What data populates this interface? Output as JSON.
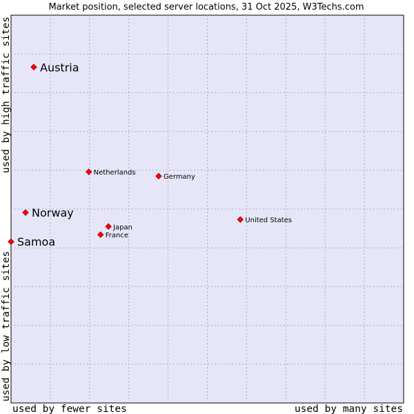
{
  "chart_data": {
    "type": "scatter",
    "title": "Market position, selected server locations, 31 Oct 2025, W3Techs.com",
    "xlabel_left": "used by fewer sites",
    "xlabel_right": "used by many sites",
    "ylabel_bottom": "used by low traffic sites",
    "ylabel_top": "used by high traffic sites",
    "xlim": [
      0,
      100
    ],
    "ylim": [
      0,
      100
    ],
    "grid": true,
    "background": "#e6e6f8",
    "gridline_color": "#aaaacc",
    "marker_color": "#ff0000",
    "points": [
      {
        "name": "Austria",
        "x": 5.8,
        "y": 86.6,
        "emphasis": true
      },
      {
        "name": "Netherlands",
        "x": 19.8,
        "y": 59.6,
        "emphasis": false
      },
      {
        "name": "Germany",
        "x": 37.6,
        "y": 58.5,
        "emphasis": false
      },
      {
        "name": "Norway",
        "x": 3.7,
        "y": 49.1,
        "emphasis": true
      },
      {
        "name": "United States",
        "x": 58.4,
        "y": 47.3,
        "emphasis": false
      },
      {
        "name": "Japan",
        "x": 24.8,
        "y": 45.5,
        "emphasis": false
      },
      {
        "name": "France",
        "x": 22.8,
        "y": 43.4,
        "emphasis": false
      },
      {
        "name": "Samoa",
        "x": 0.0,
        "y": 41.6,
        "emphasis": true
      }
    ]
  }
}
